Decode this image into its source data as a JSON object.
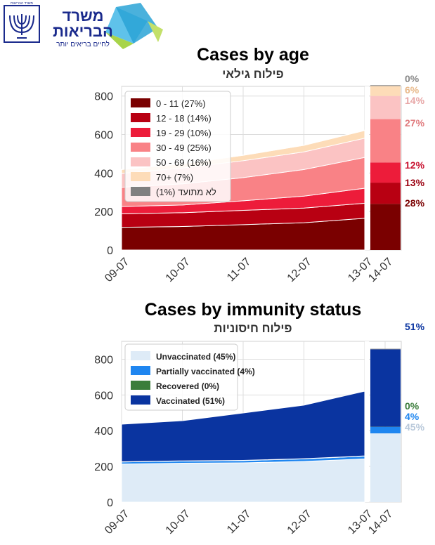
{
  "header": {
    "ministry_name_line1": "משרד",
    "ministry_name_line2": "הבריאות",
    "ministry_slogan": "לחיים בריאים יותר",
    "emblem_text": "משרד הבריאות"
  },
  "chart_data": [
    {
      "type": "area",
      "stacked": true,
      "title": "Cases by age",
      "subtitle": "פילוח גילאי",
      "x": [
        "09-07",
        "10-07",
        "11-07",
        "12-07",
        "13-07"
      ],
      "summary_label": "14-07",
      "ylim": [
        0,
        850
      ],
      "yticks": [
        0,
        200,
        400,
        600,
        800
      ],
      "grid": true,
      "legend_position": "top-left",
      "series": [
        {
          "name": "0 - 11 (27%)",
          "color": "#7a0000",
          "values": [
            118,
            122,
            132,
            142,
            165
          ],
          "summary_value": 240,
          "summary_pct": "28%"
        },
        {
          "name": "12 - 18 (14%)",
          "color": "#b80012",
          "values": [
            70,
            72,
            74,
            76,
            78
          ],
          "summary_value": 110,
          "summary_pct": "13%"
        },
        {
          "name": "19 - 29 (10%)",
          "color": "#ed1c3a",
          "values": [
            38,
            40,
            50,
            62,
            78
          ],
          "summary_value": 105,
          "summary_pct": "12%"
        },
        {
          "name": "30 - 49 (25%)",
          "color": "#f98286",
          "values": [
            100,
            110,
            120,
            138,
            160
          ],
          "summary_value": 225,
          "summary_pct": "27%"
        },
        {
          "name": "50 - 69 (16%)",
          "color": "#fbc3c3",
          "values": [
            72,
            82,
            88,
            92,
            100
          ],
          "summary_value": 120,
          "summary_pct": "14%"
        },
        {
          "name": "70+ (7%)",
          "color": "#fddcb8",
          "values": [
            20,
            22,
            28,
            34,
            40
          ],
          "summary_value": 52,
          "summary_pct": "6%"
        },
        {
          "name": "לא מתועד (1%)",
          "color": "#808080",
          "values": [
            2,
            2,
            2,
            2,
            2
          ],
          "summary_value": 3,
          "summary_pct": "0%"
        }
      ]
    },
    {
      "type": "area",
      "stacked": true,
      "title": "Cases by immunity status",
      "subtitle": "פילוח חיסוניות",
      "x": [
        "09-07",
        "10-07",
        "11-07",
        "12-07",
        "13-07"
      ],
      "summary_label": "14-07",
      "ylim": [
        0,
        900
      ],
      "yticks": [
        0,
        200,
        400,
        600,
        800
      ],
      "grid": true,
      "legend_position": "top-left",
      "series": [
        {
          "name": "Unvaccinated (45%)",
          "color": "#deebf7",
          "values": [
            213,
            218,
            220,
            228,
            242
          ],
          "summary_value": 385,
          "summary_pct": "45%"
        },
        {
          "name": "Partially vaccinated (4%)",
          "color": "#1f86f0",
          "values": [
            12,
            12,
            13,
            14,
            16
          ],
          "summary_value": 36,
          "summary_pct": "4%"
        },
        {
          "name": "Recovered (0%)",
          "color": "#3b7d3b",
          "values": [
            1,
            1,
            1,
            1,
            1
          ],
          "summary_value": 1,
          "summary_pct": "0%"
        },
        {
          "name": "Vaccinated (51%)",
          "color": "#0a34a0",
          "values": [
            210,
            225,
            265,
            300,
            362
          ],
          "summary_value": 435,
          "summary_pct": "51%"
        }
      ]
    }
  ]
}
